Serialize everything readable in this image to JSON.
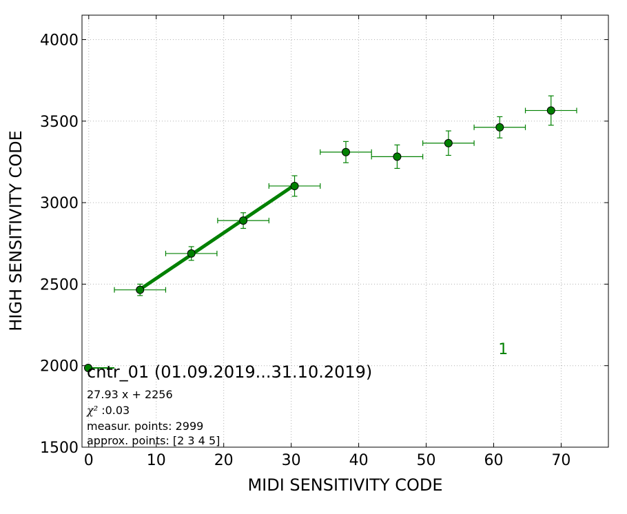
{
  "chart_data": {
    "type": "scatter",
    "xlabel": "MIDI SENSITIVITY CODE",
    "ylabel": "HIGH SENSITIVITY CODE",
    "xlim": [
      -1,
      77
    ],
    "ylim": [
      1500,
      4150
    ],
    "x_ticks": [
      0,
      10,
      20,
      30,
      40,
      50,
      60,
      70
    ],
    "y_ticks": [
      1500,
      2000,
      2500,
      3000,
      3500,
      4000
    ],
    "grid": true,
    "colors": {
      "series": "#008000",
      "marker_edge": "#000000"
    },
    "points": [
      {
        "x": 7.6,
        "y": 2465,
        "xerr": 3.8,
        "yerr": 35
      },
      {
        "x": 15.2,
        "y": 2688,
        "xerr": 3.8,
        "yerr": 42
      },
      {
        "x": 22.9,
        "y": 2890,
        "xerr": 3.8,
        "yerr": 48
      },
      {
        "x": 30.5,
        "y": 3102,
        "xerr": 3.8,
        "yerr": 63
      },
      {
        "x": 38.1,
        "y": 3310,
        "xerr": 3.8,
        "yerr": 65
      },
      {
        "x": 45.7,
        "y": 3282,
        "xerr": 3.8,
        "yerr": 72
      },
      {
        "x": 53.3,
        "y": 3365,
        "xerr": 3.8,
        "yerr": 75
      },
      {
        "x": 60.9,
        "y": 3462,
        "xerr": 3.8,
        "yerr": 65
      },
      {
        "x": 68.5,
        "y": 3565,
        "xerr": 3.8,
        "yerr": 90
      }
    ],
    "fit_line": {
      "x": [
        7.6,
        30.5
      ],
      "y": [
        2468,
        3108
      ]
    },
    "annotation_label": "1",
    "annotation_pos": {
      "x": 61.4,
      "y": 2070
    },
    "legend": {
      "title": "cntr_01 (01.09.2019...31.10.2019)",
      "formula": "27.93 x + 2256",
      "chi2_symbol": "χ²",
      "chi2_value": " :0.03",
      "measur_points": "measur. points: 2999",
      "approx_points": "approx. points: [2 3 4 5]"
    }
  }
}
